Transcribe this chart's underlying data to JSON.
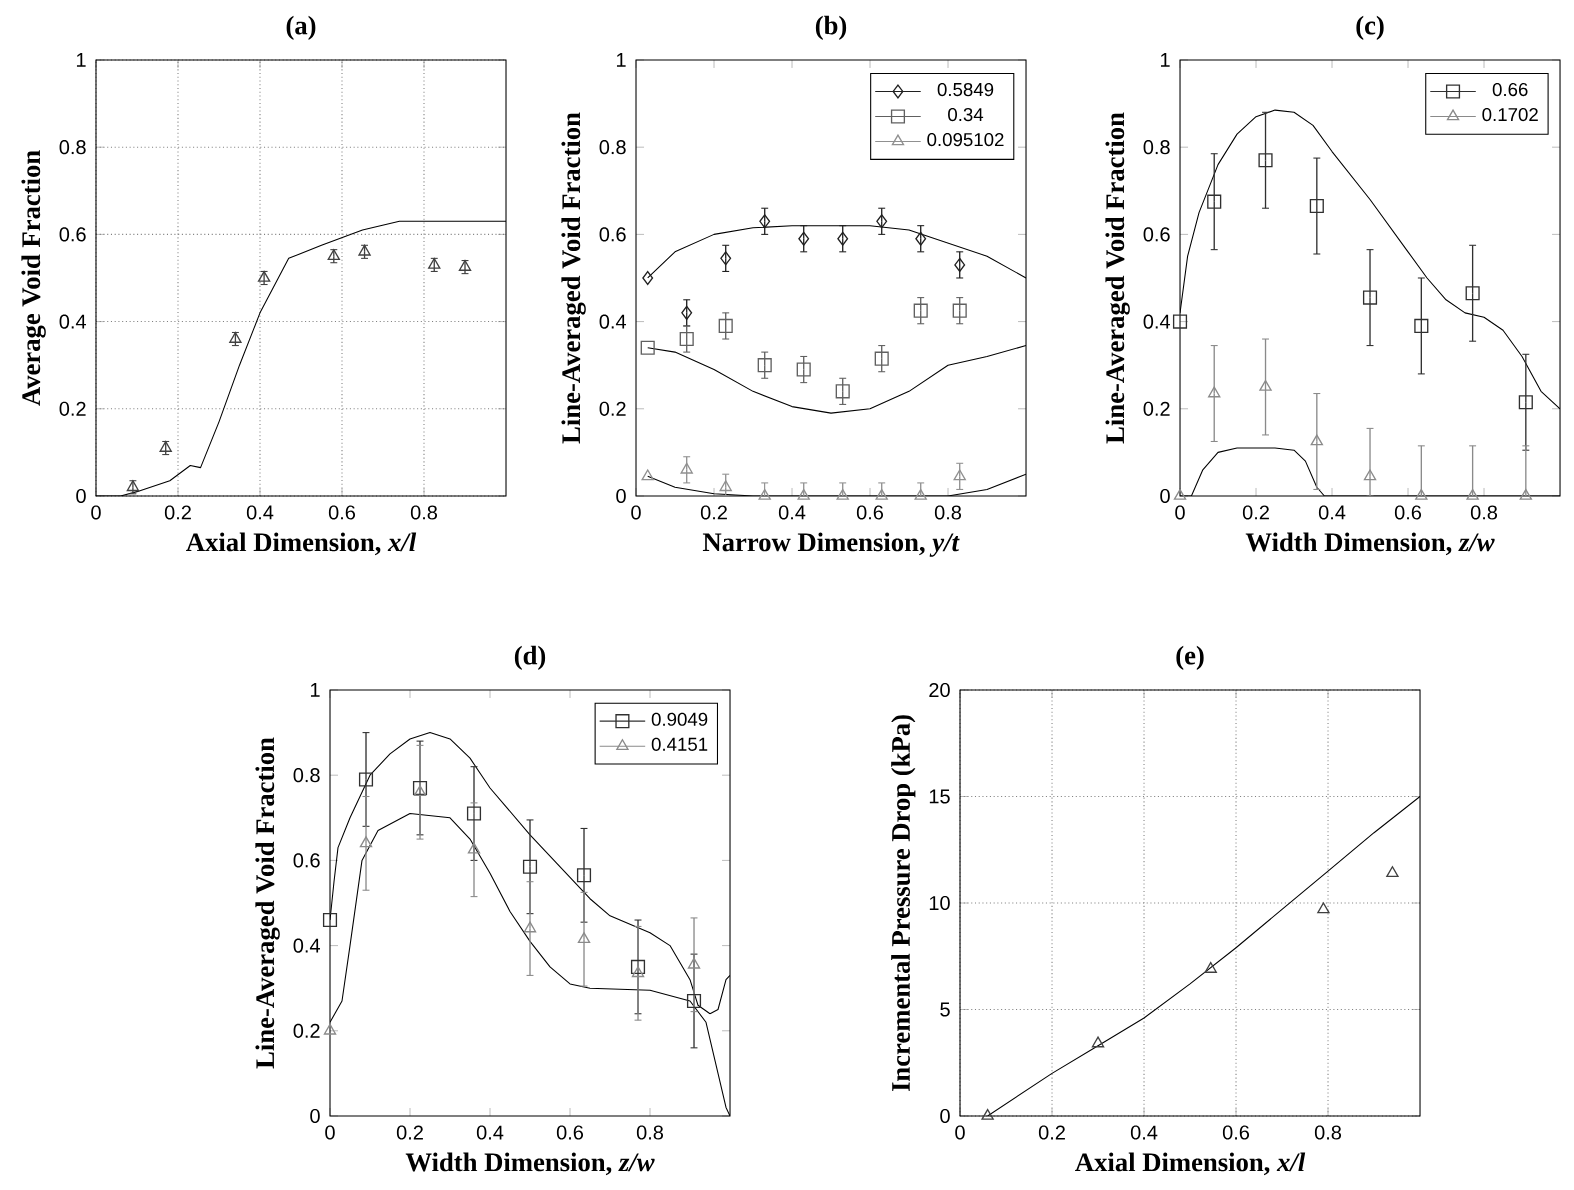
{
  "chart_data": [
    {
      "type": "line",
      "title": "(a)",
      "xlabel": "Axial Dimension, *x/l*",
      "ylabel": "Average Void Fraction",
      "xlim": [
        0,
        1
      ],
      "ylim": [
        0,
        1
      ],
      "xticks": [
        0,
        0.2,
        0.4,
        0.6,
        0.8
      ],
      "yticks": [
        0,
        0.2,
        0.4,
        0.6,
        0.8,
        1
      ],
      "grid": true,
      "series": [
        {
          "type": "line",
          "color": "#000000",
          "marker": "none",
          "x": [
            0,
            0.06,
            0.1,
            0.18,
            0.23,
            0.255,
            0.3,
            0.35,
            0.4,
            0.47,
            0.55,
            0.65,
            0.74,
            1
          ],
          "values": [
            0,
            0,
            0.01,
            0.035,
            0.07,
            0.065,
            0.17,
            0.3,
            0.42,
            0.545,
            0.575,
            0.61,
            0.63,
            0.63
          ]
        },
        {
          "type": "scatter",
          "color": "#404040",
          "marker": "triangle",
          "x": [
            0.09,
            0.17,
            0.34,
            0.41,
            0.58,
            0.655,
            0.825,
            0.9
          ],
          "values": [
            0.02,
            0.11,
            0.36,
            0.5,
            0.55,
            0.56,
            0.53,
            0.525
          ],
          "errors": [
            0.015,
            0.015,
            0.015,
            0.015,
            0.015,
            0.015,
            0.015,
            0.015
          ]
        }
      ]
    },
    {
      "type": "line",
      "title": "(b)",
      "xlabel": "Narrow Dimension, *y/t*",
      "ylabel": "Line-Averaged Void Fraction",
      "xlim": [
        0,
        1
      ],
      "ylim": [
        0,
        1
      ],
      "xticks": [
        0,
        0.2,
        0.4,
        0.6,
        0.8
      ],
      "yticks": [
        0,
        0.2,
        0.4,
        0.6,
        0.8,
        1
      ],
      "legend": "top right",
      "series": [
        {
          "type": "line",
          "color": "#000000",
          "marker": "none",
          "x": [
            0.03,
            0.1,
            0.2,
            0.3,
            0.4,
            0.5,
            0.6,
            0.7,
            0.8,
            0.9,
            1
          ],
          "values": [
            0.5,
            0.56,
            0.6,
            0.615,
            0.62,
            0.62,
            0.62,
            0.61,
            0.58,
            0.55,
            0.5
          ]
        },
        {
          "type": "line",
          "color": "#000000",
          "marker": "none",
          "x": [
            0.03,
            0.1,
            0.2,
            0.3,
            0.4,
            0.5,
            0.6,
            0.7,
            0.8,
            0.9,
            1
          ],
          "values": [
            0.34,
            0.33,
            0.29,
            0.24,
            0.205,
            0.19,
            0.2,
            0.24,
            0.3,
            0.32,
            0.345
          ]
        },
        {
          "type": "line",
          "color": "#000000",
          "marker": "none",
          "x": [
            0.03,
            0.1,
            0.2,
            0.3,
            0.8,
            0.9,
            1
          ],
          "values": [
            0.045,
            0.02,
            0.005,
            0,
            0,
            0.015,
            0.05
          ]
        },
        {
          "type": "scatter",
          "name": "0.5849",
          "color": "#202020",
          "marker": "diamond",
          "x": [
            0.03,
            0.13,
            0.23,
            0.33,
            0.43,
            0.53,
            0.63,
            0.73,
            0.83
          ],
          "values": [
            0.5,
            0.42,
            0.545,
            0.63,
            0.59,
            0.59,
            0.63,
            0.59,
            0.53
          ],
          "errors": [
            null,
            0.03,
            0.03,
            0.03,
            0.03,
            0.03,
            0.03,
            0.03,
            0.03
          ]
        },
        {
          "type": "scatter",
          "name": "0.34",
          "color": "#606060",
          "marker": "square",
          "x": [
            0.03,
            0.13,
            0.23,
            0.33,
            0.43,
            0.53,
            0.63,
            0.73,
            0.83
          ],
          "values": [
            0.34,
            0.36,
            0.39,
            0.3,
            0.29,
            0.24,
            0.315,
            0.425,
            0.425
          ],
          "errors": [
            null,
            0.03,
            0.03,
            0.03,
            0.03,
            0.03,
            0.03,
            0.03,
            0.03
          ]
        },
        {
          "type": "scatter",
          "name": "0.095102",
          "color": "#909090",
          "marker": "triangle",
          "x": [
            0.03,
            0.13,
            0.23,
            0.33,
            0.43,
            0.53,
            0.63,
            0.73,
            0.83
          ],
          "values": [
            0.045,
            0.06,
            0.02,
            0,
            0,
            0,
            0,
            0,
            0.045
          ],
          "errors": [
            null,
            0.03,
            [
              0,
              0.05
            ],
            [
              0,
              0.03
            ],
            [
              0,
              0.03
            ],
            [
              0,
              0.03
            ],
            [
              0,
              0.03
            ],
            [
              0,
              0.03
            ],
            0.03
          ]
        }
      ]
    },
    {
      "type": "line",
      "title": "(c)",
      "xlabel": "Width Dimension, *z/w*",
      "ylabel": "Line-Averaged Void Fraction",
      "xlim": [
        0,
        1
      ],
      "ylim": [
        0,
        1
      ],
      "xticks": [
        0,
        0.2,
        0.4,
        0.6,
        0.8
      ],
      "yticks": [
        0,
        0.2,
        0.4,
        0.6,
        0.8,
        1
      ],
      "legend": "top right",
      "series": [
        {
          "type": "line",
          "color": "#000000",
          "marker": "none",
          "x": [
            0,
            0.02,
            0.05,
            0.1,
            0.15,
            0.2,
            0.25,
            0.3,
            0.35,
            0.4,
            0.5,
            0.6,
            0.65,
            0.7,
            0.75,
            0.8,
            0.85,
            0.9,
            0.95,
            1
          ],
          "values": [
            0.42,
            0.55,
            0.65,
            0.76,
            0.83,
            0.87,
            0.885,
            0.88,
            0.85,
            0.79,
            0.68,
            0.56,
            0.5,
            0.45,
            0.42,
            0.41,
            0.38,
            0.32,
            0.24,
            0.2
          ]
        },
        {
          "type": "line",
          "color": "#000000",
          "marker": "none",
          "x": [
            0,
            0.03,
            0.06,
            0.1,
            0.15,
            0.2,
            0.25,
            0.3,
            0.33,
            0.36,
            0.38,
            1
          ],
          "values": [
            0,
            0,
            0.06,
            0.1,
            0.11,
            0.11,
            0.11,
            0.105,
            0.08,
            0.02,
            0,
            0
          ]
        },
        {
          "type": "scatter",
          "name": "0.66",
          "color": "#303030",
          "marker": "square",
          "x": [
            0,
            0.09,
            0.225,
            0.36,
            0.5,
            0.635,
            0.77,
            0.91
          ],
          "values": [
            0.4,
            0.675,
            0.77,
            0.665,
            0.455,
            0.39,
            0.465,
            0.215
          ],
          "errors": [
            null,
            0.11,
            0.11,
            0.11,
            0.11,
            0.11,
            0.11,
            0.11
          ]
        },
        {
          "type": "scatter",
          "name": "0.1702",
          "color": "#8a8a8a",
          "marker": "triangle",
          "x": [
            0,
            0.09,
            0.225,
            0.36,
            0.5,
            0.635,
            0.77,
            0.91
          ],
          "values": [
            0,
            0.235,
            0.25,
            0.125,
            0.045,
            0,
            0,
            0
          ],
          "errors": [
            null,
            0.11,
            0.11,
            0.11,
            [
              0,
              0.155
            ],
            [
              0,
              0.115
            ],
            [
              0,
              0.115
            ],
            [
              0,
              0.115
            ]
          ]
        }
      ]
    },
    {
      "type": "line",
      "title": "(d)",
      "xlabel": "Width Dimension, *z/w*",
      "ylabel": "Line-Averaged Void Fraction",
      "xlim": [
        0,
        1
      ],
      "ylim": [
        0,
        1
      ],
      "xticks": [
        0,
        0.2,
        0.4,
        0.6,
        0.8
      ],
      "yticks": [
        0,
        0.2,
        0.4,
        0.6,
        0.8,
        1
      ],
      "legend": "top right",
      "series": [
        {
          "type": "line",
          "color": "#000000",
          "marker": "none",
          "x": [
            0,
            0.01,
            0.02,
            0.05,
            0.1,
            0.15,
            0.2,
            0.25,
            0.3,
            0.35,
            0.4,
            0.5,
            0.6,
            0.65,
            0.7,
            0.8,
            0.85,
            0.9,
            0.92,
            0.95,
            0.97,
            0.99,
            1
          ],
          "values": [
            0.46,
            0.55,
            0.63,
            0.7,
            0.8,
            0.85,
            0.885,
            0.9,
            0.885,
            0.84,
            0.77,
            0.66,
            0.56,
            0.51,
            0.47,
            0.43,
            0.4,
            0.32,
            0.26,
            0.24,
            0.25,
            0.32,
            0.33
          ]
        },
        {
          "type": "line",
          "color": "#000000",
          "marker": "none",
          "x": [
            0,
            0.03,
            0.05,
            0.08,
            0.12,
            0.2,
            0.3,
            0.35,
            0.4,
            0.45,
            0.5,
            0.55,
            0.6,
            0.65,
            0.8,
            0.9,
            0.94,
            0.97,
            0.99,
            1
          ],
          "values": [
            0.22,
            0.27,
            0.4,
            0.6,
            0.67,
            0.71,
            0.7,
            0.65,
            0.57,
            0.48,
            0.41,
            0.35,
            0.31,
            0.3,
            0.295,
            0.27,
            0.22,
            0.1,
            0.02,
            0
          ]
        },
        {
          "type": "scatter",
          "name": "0.9049",
          "color": "#303030",
          "marker": "square",
          "x": [
            0,
            0.09,
            0.225,
            0.36,
            0.5,
            0.635,
            0.77,
            0.91
          ],
          "values": [
            0.46,
            0.79,
            0.77,
            0.71,
            0.585,
            0.565,
            0.35,
            0.27
          ],
          "errors": [
            null,
            0.11,
            0.11,
            0.11,
            0.11,
            0.11,
            0.11,
            0.11
          ]
        },
        {
          "type": "scatter",
          "name": "0.4151",
          "color": "#8a8a8a",
          "marker": "triangle",
          "x": [
            0,
            0.09,
            0.225,
            0.36,
            0.5,
            0.635,
            0.77,
            0.91
          ],
          "values": [
            0.2,
            0.64,
            0.76,
            0.625,
            0.44,
            0.415,
            0.335,
            0.355
          ],
          "errors": [
            null,
            0.11,
            0.11,
            0.11,
            0.11,
            0.11,
            0.11,
            0.11
          ]
        }
      ]
    },
    {
      "type": "line",
      "title": "(e)",
      "xlabel": "Axial Dimension, *x/l*",
      "ylabel": "Incremental Pressure Drop (kPa)",
      "xlim": [
        0,
        1
      ],
      "ylim": [
        0,
        20
      ],
      "xticks": [
        0,
        0.2,
        0.4,
        0.6,
        0.8
      ],
      "yticks": [
        0,
        5,
        10,
        15,
        20
      ],
      "grid": true,
      "series": [
        {
          "type": "line",
          "color": "#000000",
          "marker": "none",
          "x": [
            0.06,
            0.2,
            0.3,
            0.4,
            0.5,
            0.6,
            0.7,
            0.8,
            0.9,
            1
          ],
          "values": [
            0,
            2.0,
            3.3,
            4.6,
            6.2,
            7.9,
            9.7,
            11.5,
            13.3,
            15
          ]
        },
        {
          "type": "scatter",
          "color": "#404040",
          "marker": "triangle",
          "x": [
            0.06,
            0.3,
            0.545,
            0.79,
            0.94
          ],
          "values": [
            0,
            3.4,
            6.9,
            9.7,
            11.4
          ]
        }
      ]
    }
  ]
}
